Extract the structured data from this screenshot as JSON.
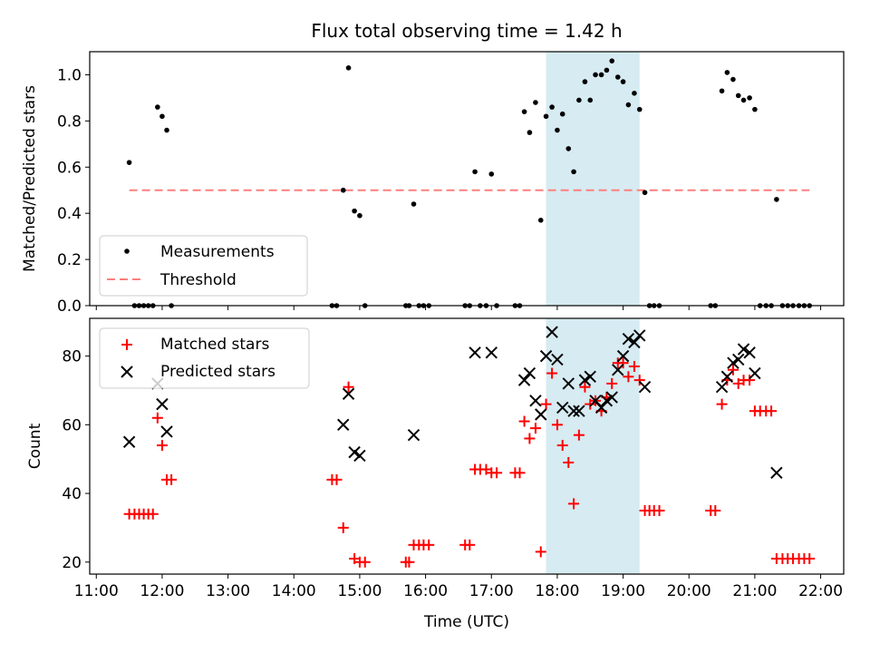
{
  "chart_data": {
    "title": "Flux total observing time = 1.42 h",
    "xlabel": "Time (UTC)",
    "x_ticks": [
      "11:00",
      "12:00",
      "13:00",
      "14:00",
      "15:00",
      "16:00",
      "17:00",
      "18:00",
      "19:00",
      "20:00",
      "21:00",
      "22:00"
    ],
    "xlim": [
      10.9,
      22.35
    ],
    "shaded_region": {
      "x_start": 17.83,
      "x_end": 19.25,
      "color": "#add8e6"
    },
    "panels": [
      {
        "type": "scatter",
        "ylabel": "Matched/Predicted stars",
        "ylim": [
          0,
          1.1
        ],
        "y_ticks": [
          "0.0",
          "0.2",
          "0.4",
          "0.6",
          "0.8",
          "1.0"
        ],
        "legend": {
          "position": "bottom-left",
          "entries": [
            "Measurements",
            "Threshold"
          ]
        },
        "threshold": {
          "name": "Threshold",
          "value": 0.5,
          "x_range": [
            11.5,
            21.83
          ],
          "color": "#ff7f7f"
        },
        "series": [
          {
            "name": "Measurements",
            "color": "#000000",
            "marker": "dot",
            "points": [
              [
                11.5,
                0.62
              ],
              [
                11.58,
                0
              ],
              [
                11.65,
                0
              ],
              [
                11.72,
                0
              ],
              [
                11.79,
                0
              ],
              [
                11.86,
                0
              ],
              [
                11.93,
                0.86
              ],
              [
                12.0,
                0.82
              ],
              [
                12.07,
                0.76
              ],
              [
                12.14,
                0
              ],
              [
                14.58,
                0
              ],
              [
                14.65,
                0
              ],
              [
                14.75,
                0.5
              ],
              [
                14.83,
                1.03
              ],
              [
                14.92,
                0.41
              ],
              [
                15.0,
                0.39
              ],
              [
                15.08,
                0
              ],
              [
                15.7,
                0
              ],
              [
                15.75,
                0
              ],
              [
                15.82,
                0.44
              ],
              [
                15.9,
                0
              ],
              [
                15.97,
                0
              ],
              [
                16.05,
                0
              ],
              [
                16.6,
                0
              ],
              [
                16.67,
                0
              ],
              [
                16.75,
                0.58
              ],
              [
                16.83,
                0
              ],
              [
                16.92,
                0
              ],
              [
                17.0,
                0.57
              ],
              [
                17.08,
                0
              ],
              [
                17.36,
                0
              ],
              [
                17.43,
                0
              ],
              [
                17.5,
                0.84
              ],
              [
                17.58,
                0.75
              ],
              [
                17.67,
                0.88
              ],
              [
                17.75,
                0.37
              ],
              [
                17.83,
                0.82
              ],
              [
                17.92,
                0.86
              ],
              [
                18.0,
                0.76
              ],
              [
                18.08,
                0.83
              ],
              [
                18.17,
                0.68
              ],
              [
                18.25,
                0.58
              ],
              [
                18.33,
                0.89
              ],
              [
                18.42,
                0.97
              ],
              [
                18.5,
                0.89
              ],
              [
                18.58,
                1.0
              ],
              [
                18.67,
                1.0
              ],
              [
                18.75,
                1.02
              ],
              [
                18.83,
                1.06
              ],
              [
                18.92,
                0.99
              ],
              [
                19.0,
                0.97
              ],
              [
                19.08,
                0.87
              ],
              [
                19.17,
                0.92
              ],
              [
                19.25,
                0.85
              ],
              [
                19.33,
                0.49
              ],
              [
                19.4,
                0
              ],
              [
                19.47,
                0
              ],
              [
                19.55,
                0
              ],
              [
                20.33,
                0
              ],
              [
                20.4,
                0
              ],
              [
                20.5,
                0.93
              ],
              [
                20.58,
                1.01
              ],
              [
                20.67,
                0.98
              ],
              [
                20.75,
                0.91
              ],
              [
                20.83,
                0.89
              ],
              [
                20.92,
                0.9
              ],
              [
                21.0,
                0.85
              ],
              [
                21.08,
                0
              ],
              [
                21.17,
                0
              ],
              [
                21.25,
                0
              ],
              [
                21.33,
                0.46
              ],
              [
                21.42,
                0
              ],
              [
                21.5,
                0
              ],
              [
                21.58,
                0
              ],
              [
                21.67,
                0
              ],
              [
                21.75,
                0
              ],
              [
                21.83,
                0
              ]
            ]
          }
        ]
      },
      {
        "type": "scatter",
        "ylabel": "Count",
        "ylim": [
          16.5,
          91
        ],
        "y_ticks": [
          "20",
          "40",
          "60",
          "80"
        ],
        "legend": {
          "position": "top-left",
          "entries": [
            "Matched stars",
            "Predicted stars"
          ]
        },
        "series": [
          {
            "name": "Matched stars",
            "color": "#ff0000",
            "marker": "plus",
            "points": [
              [
                11.5,
                34
              ],
              [
                11.58,
                34
              ],
              [
                11.65,
                34
              ],
              [
                11.72,
                34
              ],
              [
                11.79,
                34
              ],
              [
                11.86,
                34
              ],
              [
                11.93,
                62
              ],
              [
                12.0,
                54
              ],
              [
                12.07,
                44
              ],
              [
                12.14,
                44
              ],
              [
                14.58,
                44
              ],
              [
                14.65,
                44
              ],
              [
                14.75,
                30
              ],
              [
                14.83,
                71
              ],
              [
                14.92,
                21
              ],
              [
                15.0,
                20
              ],
              [
                15.08,
                20
              ],
              [
                15.7,
                20
              ],
              [
                15.75,
                20
              ],
              [
                15.82,
                25
              ],
              [
                15.9,
                25
              ],
              [
                15.97,
                25
              ],
              [
                16.05,
                25
              ],
              [
                16.6,
                25
              ],
              [
                16.67,
                25
              ],
              [
                16.75,
                47
              ],
              [
                16.83,
                47
              ],
              [
                16.92,
                47
              ],
              [
                17.0,
                46
              ],
              [
                17.08,
                46
              ],
              [
                17.36,
                46
              ],
              [
                17.43,
                46
              ],
              [
                17.5,
                61
              ],
              [
                17.58,
                56
              ],
              [
                17.67,
                59
              ],
              [
                17.75,
                23
              ],
              [
                17.83,
                66
              ],
              [
                17.92,
                75
              ],
              [
                18.0,
                60
              ],
              [
                18.08,
                54
              ],
              [
                18.17,
                49
              ],
              [
                18.25,
                37
              ],
              [
                18.33,
                57
              ],
              [
                18.42,
                71
              ],
              [
                18.5,
                66
              ],
              [
                18.58,
                67
              ],
              [
                18.67,
                64
              ],
              [
                18.75,
                68
              ],
              [
                18.83,
                72
              ],
              [
                18.92,
                78
              ],
              [
                19.0,
                78
              ],
              [
                19.08,
                74
              ],
              [
                19.17,
                77
              ],
              [
                19.25,
                73
              ],
              [
                19.33,
                35
              ],
              [
                19.4,
                35
              ],
              [
                19.47,
                35
              ],
              [
                19.55,
                35
              ],
              [
                20.33,
                35
              ],
              [
                20.4,
                35
              ],
              [
                20.5,
                66
              ],
              [
                20.58,
                73
              ],
              [
                20.67,
                76
              ],
              [
                20.75,
                72
              ],
              [
                20.83,
                73
              ],
              [
                20.92,
                73
              ],
              [
                21.0,
                64
              ],
              [
                21.08,
                64
              ],
              [
                21.17,
                64
              ],
              [
                21.25,
                64
              ],
              [
                21.33,
                21
              ],
              [
                21.42,
                21
              ],
              [
                21.5,
                21
              ],
              [
                21.58,
                21
              ],
              [
                21.67,
                21
              ],
              [
                21.75,
                21
              ],
              [
                21.83,
                21
              ]
            ]
          },
          {
            "name": "Predicted stars",
            "color": "#000000",
            "marker": "x",
            "points": [
              [
                11.5,
                55
              ],
              [
                11.93,
                72
              ],
              [
                12.0,
                66
              ],
              [
                12.07,
                58
              ],
              [
                14.75,
                60
              ],
              [
                14.83,
                69
              ],
              [
                14.92,
                52
              ],
              [
                15.0,
                51
              ],
              [
                15.82,
                57
              ],
              [
                16.75,
                81
              ],
              [
                17.0,
                81
              ],
              [
                17.5,
                73
              ],
              [
                17.58,
                75
              ],
              [
                17.67,
                67
              ],
              [
                17.75,
                63
              ],
              [
                17.83,
                80
              ],
              [
                17.92,
                87
              ],
              [
                18.0,
                79
              ],
              [
                18.08,
                65
              ],
              [
                18.17,
                72
              ],
              [
                18.25,
                64
              ],
              [
                18.33,
                64
              ],
              [
                18.42,
                73
              ],
              [
                18.5,
                74
              ],
              [
                18.58,
                67
              ],
              [
                18.67,
                65
              ],
              [
                18.75,
                67
              ],
              [
                18.83,
                68
              ],
              [
                18.92,
                76
              ],
              [
                19.0,
                80
              ],
              [
                19.08,
                85
              ],
              [
                19.17,
                84
              ],
              [
                19.25,
                86
              ],
              [
                19.33,
                71
              ],
              [
                20.5,
                71
              ],
              [
                20.58,
                74
              ],
              [
                20.67,
                78
              ],
              [
                20.75,
                79
              ],
              [
                20.83,
                82
              ],
              [
                20.92,
                81
              ],
              [
                21.0,
                75
              ],
              [
                21.33,
                46
              ]
            ]
          }
        ]
      }
    ]
  }
}
